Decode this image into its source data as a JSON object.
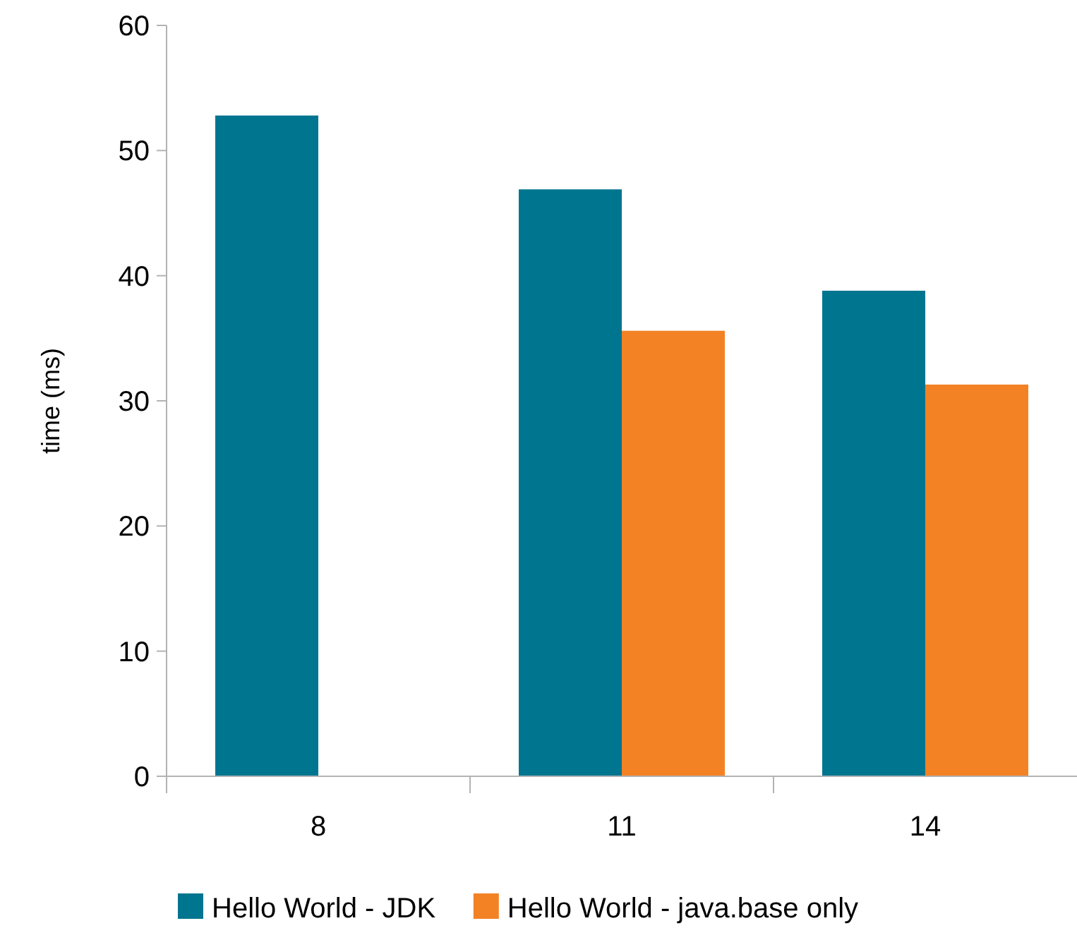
{
  "chart_data": {
    "type": "bar",
    "ylabel": "time (ms)",
    "categories": [
      "8",
      "11",
      "14"
    ],
    "series": [
      {
        "name": "Hello World - JDK",
        "color": "#00758f",
        "values": [
          52.8,
          46.9,
          38.8
        ]
      },
      {
        "name": "Hello World - java.base only",
        "color": "#f38225",
        "values": [
          null,
          35.6,
          31.3
        ]
      }
    ],
    "ylim": [
      0,
      60
    ],
    "yticks": [
      0,
      10,
      20,
      30,
      40,
      50,
      60
    ],
    "grid": false,
    "legend": "bottom"
  }
}
